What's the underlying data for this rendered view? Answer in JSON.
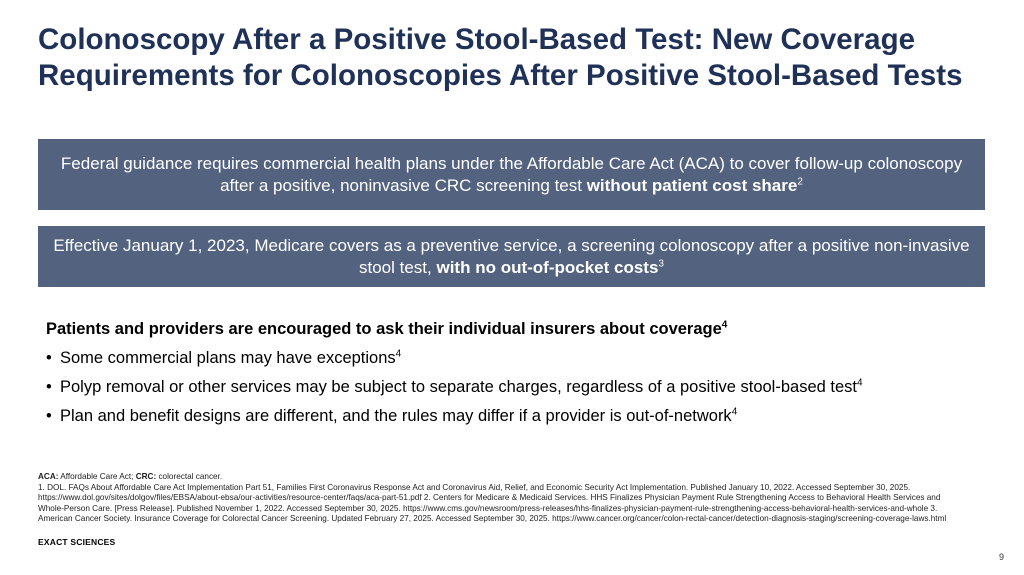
{
  "slide": {
    "title": "Colonoscopy After a Positive Stool-Based Test: New Coverage Requirements for Colonoscopies After Positive Stool-Based Tests",
    "banner1": {
      "text": "Federal guidance requires commercial health plans under the Affordable Care Act (ACA) to cover follow-up colonoscopy after a positive, noninvasive CRC screening test ",
      "bold": "without patient cost share",
      "sup": "2"
    },
    "banner2": {
      "text": "Effective January 1, 2023, Medicare covers as a preventive service, a screening colonoscopy after a positive non-invasive stool test, ",
      "bold": "with no out-of-pocket costs",
      "sup": "3"
    },
    "heading": {
      "text": "Patients and providers are encouraged to ask their individual insurers about coverage",
      "sup": "4"
    },
    "bullets": [
      {
        "text": "Some commercial plans may have exceptions",
        "sup": "4"
      },
      {
        "text": "Polyp removal or other services may be subject to separate charges, regardless of a positive stool-based test",
        "sup": "4"
      },
      {
        "text": "Plan and benefit designs are different, and the rules may differ if a provider is out-of-network",
        "sup": "4"
      }
    ],
    "bullet_symbol": "•",
    "abbreviations": {
      "aca_label": "ACA:",
      "aca_text": " Affordable Care Act; ",
      "crc_label": "CRC:",
      "crc_text": " colorectal cancer."
    },
    "references": "1. DOL. FAQs About Affordable Care Act Implementation Part 51, Families First Coronavirus Response Act and Coronavirus Aid, Relief, and Economic Security Act Implementation. Published January 10, 2022. Accessed September 30, 2025. https://www.dol.gov/sites/dolgov/files/EBSA/about-ebsa/our-activities/resource-center/faqs/aca-part-51.pdf  2. Centers for Medicare & Medicaid Services. HHS Finalizes Physician Payment Rule Strengthening Access to Behavioral Health Services and Whole-Person Care. [Press Release]. Published November 1, 2022. Accessed September 30, 2025. https://www.cms.gov/newsroom/press-releases/hhs-finalizes-physician-payment-rule-strengthening-access-behavioral-health-services-and-whole 3. American Cancer Society. Insurance Coverage for Colorectal Cancer Screening. Updated February 27, 2025. Accessed September 30, 2025. https://www.cancer.org/cancer/colon-rectal-cancer/detection-diagnosis-staging/screening-coverage-laws.html",
    "brand": "EXACT SCIENCES",
    "page_number": "9"
  },
  "colors": {
    "title": "#1f3157",
    "banner_bg": "#52627f",
    "banner_text": "#ffffff"
  }
}
